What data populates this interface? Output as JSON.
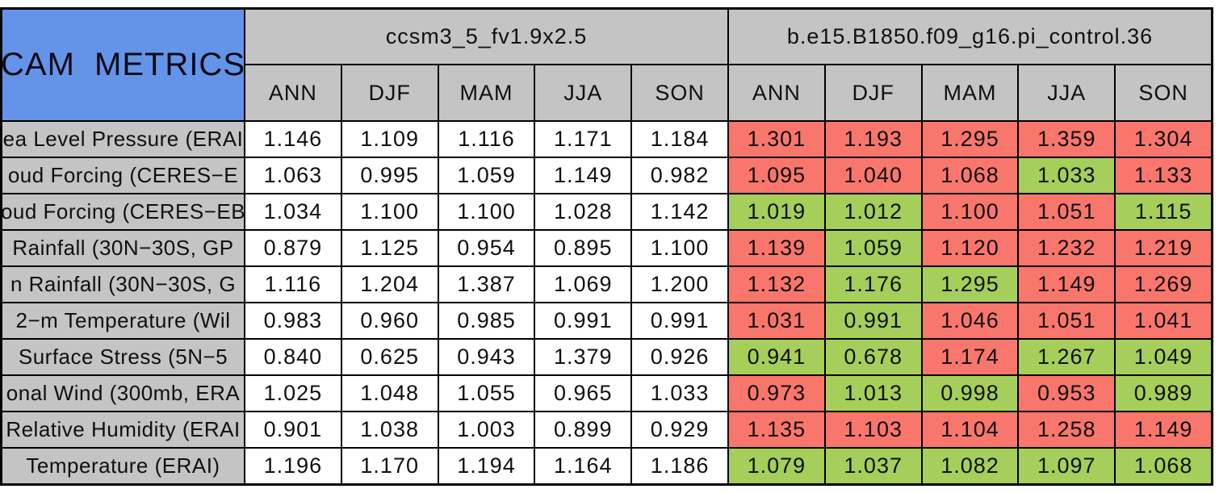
{
  "title": "CAM METRICS",
  "colors": {
    "title_blue": "#6494ea",
    "header_grey": "#c4c4c4",
    "neutral_white": "#ffffff",
    "metric_worse_red": "#f9766c",
    "metric_better_green": "#a5ce5b",
    "border_black": "#000000"
  },
  "chart_data": {
    "type": "table",
    "title": "CAM METRICS",
    "models": [
      "ccsm3_5_fv1.9x2.5",
      "b.e15.B1850.f09_g16.pi_control.36"
    ],
    "seasons": [
      "ANN",
      "DJF",
      "MAM",
      "JJA",
      "SON"
    ],
    "legend_note": "cell colors: red = worse, green = better (as rendered)",
    "rows": [
      {
        "label": "ea Level Pressure (ERAI",
        "model1": [
          "1.146",
          "1.109",
          "1.116",
          "1.171",
          "1.184"
        ],
        "model2": [
          "1.301",
          "1.193",
          "1.295",
          "1.359",
          "1.304"
        ],
        "model2_colors": [
          "red",
          "red",
          "red",
          "red",
          "red"
        ]
      },
      {
        "label": "oud Forcing (CERES−E",
        "model1": [
          "1.063",
          "0.995",
          "1.059",
          "1.149",
          "0.982"
        ],
        "model2": [
          "1.095",
          "1.040",
          "1.068",
          "1.033",
          "1.133"
        ],
        "model2_colors": [
          "red",
          "red",
          "red",
          "green",
          "red"
        ]
      },
      {
        "label": "oud Forcing (CERES−EB",
        "model1": [
          "1.034",
          "1.100",
          "1.100",
          "1.028",
          "1.142"
        ],
        "model2": [
          "1.019",
          "1.012",
          "1.100",
          "1.051",
          "1.115"
        ],
        "model2_colors": [
          "green",
          "green",
          "red",
          "red",
          "green"
        ]
      },
      {
        "label": "Rainfall (30N−30S, GP",
        "model1": [
          "0.879",
          "1.125",
          "0.954",
          "0.895",
          "1.100"
        ],
        "model2": [
          "1.139",
          "1.059",
          "1.120",
          "1.232",
          "1.219"
        ],
        "model2_colors": [
          "red",
          "green",
          "red",
          "red",
          "red"
        ]
      },
      {
        "label": "n Rainfall (30N−30S, G",
        "model1": [
          "1.116",
          "1.204",
          "1.387",
          "1.069",
          "1.200"
        ],
        "model2": [
          "1.132",
          "1.176",
          "1.295",
          "1.149",
          "1.269"
        ],
        "model2_colors": [
          "red",
          "green",
          "green",
          "red",
          "red"
        ]
      },
      {
        "label": "2−m Temperature (Wil",
        "model1": [
          "0.983",
          "0.960",
          "0.985",
          "0.991",
          "0.991"
        ],
        "model2": [
          "1.031",
          "0.991",
          "1.046",
          "1.051",
          "1.041"
        ],
        "model2_colors": [
          "red",
          "green",
          "red",
          "red",
          "red"
        ]
      },
      {
        "label": "Surface Stress (5N−5",
        "model1": [
          "0.840",
          "0.625",
          "0.943",
          "1.379",
          "0.926"
        ],
        "model2": [
          "0.941",
          "0.678",
          "1.174",
          "1.267",
          "1.049"
        ],
        "model2_colors": [
          "green",
          "green",
          "red",
          "green",
          "green"
        ]
      },
      {
        "label": "onal Wind (300mb, ERA",
        "model1": [
          "1.025",
          "1.048",
          "1.055",
          "0.965",
          "1.033"
        ],
        "model2": [
          "0.973",
          "1.013",
          "0.998",
          "0.953",
          "0.989"
        ],
        "model2_colors": [
          "red",
          "green",
          "green",
          "red",
          "green"
        ]
      },
      {
        "label": "Relative Humidity (ERAI",
        "model1": [
          "0.901",
          "1.038",
          "1.003",
          "0.899",
          "0.929"
        ],
        "model2": [
          "1.135",
          "1.103",
          "1.104",
          "1.258",
          "1.149"
        ],
        "model2_colors": [
          "red",
          "red",
          "red",
          "red",
          "red"
        ]
      },
      {
        "label": "Temperature (ERAI)",
        "model1": [
          "1.196",
          "1.170",
          "1.194",
          "1.164",
          "1.186"
        ],
        "model2": [
          "1.079",
          "1.037",
          "1.082",
          "1.097",
          "1.068"
        ],
        "model2_colors": [
          "green",
          "green",
          "green",
          "green",
          "green"
        ]
      }
    ]
  }
}
